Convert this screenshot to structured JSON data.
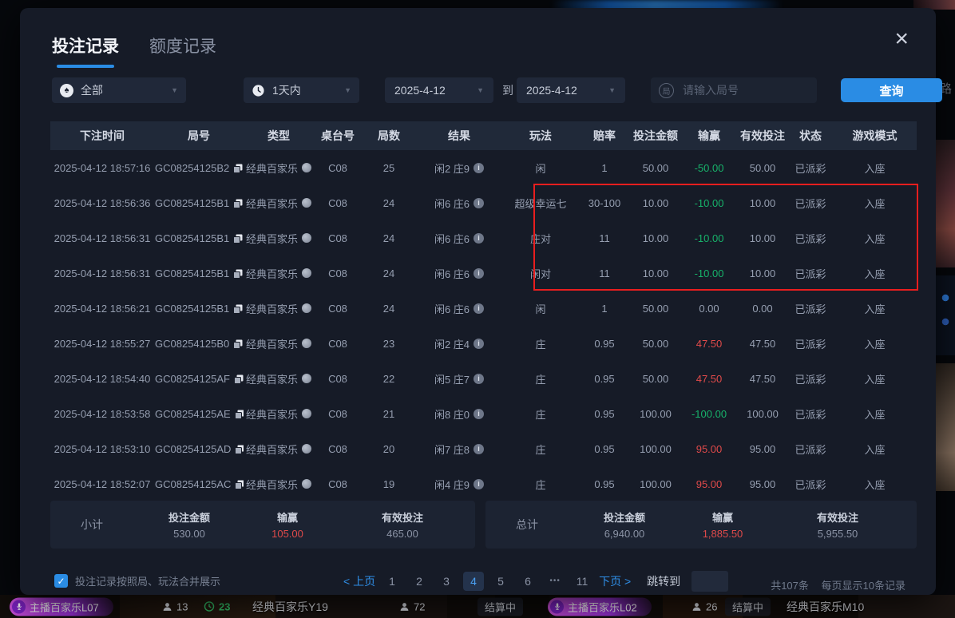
{
  "icons": {
    "spade": "♠",
    "caret": "▼",
    "check": "✓",
    "close": "×",
    "info_char": "i",
    "round_badge": "局"
  },
  "background": {
    "side_text": "路",
    "bottom_bar": [
      {
        "type": "live",
        "label": "主播百家乐L07"
      },
      {
        "type": "viewers",
        "value": "13"
      },
      {
        "type": "timer",
        "value": "23"
      },
      {
        "type": "title",
        "label": "经典百家乐Y19"
      },
      {
        "type": "viewers",
        "value": "72"
      },
      {
        "type": "status",
        "label": "结算中"
      },
      {
        "type": "live",
        "label": "主播百家乐L02"
      },
      {
        "type": "viewers",
        "value": "26"
      },
      {
        "type": "status",
        "label": "结算中"
      },
      {
        "type": "title",
        "label": "经典百家乐M10"
      }
    ]
  },
  "modal": {
    "tabs": [
      {
        "label": "投注记录",
        "active": true
      },
      {
        "label": "额度记录",
        "active": false
      }
    ],
    "filters": {
      "game_type": "全部",
      "time_range": "1天内",
      "date_from": "2025-4-12",
      "to_label": "到",
      "date_to": "2025-4-12",
      "round_placeholder": "请输入局号",
      "search_button": "查询"
    },
    "table": {
      "headers": [
        "下注时间",
        "局号",
        "类型",
        "桌台号",
        "局数",
        "结果",
        "玩法",
        "赔率",
        "投注金额",
        "输赢",
        "有效投注",
        "状态",
        "游戏模式"
      ],
      "rows": [
        {
          "time": "2025-04-12 18:57:16",
          "round_id": "GC08254125B2",
          "game_type": "经典百家乐",
          "table_no": "C08",
          "rounds": "25",
          "result": "闲2 庄9",
          "play": "闲",
          "odds": "1",
          "bet": "50.00",
          "winloss": "-50.00",
          "winloss_color": "green",
          "valid": "50.00",
          "status": "已派彩",
          "mode": "入座"
        },
        {
          "time": "2025-04-12 18:56:36",
          "round_id": "GC08254125B1",
          "game_type": "经典百家乐",
          "table_no": "C08",
          "rounds": "24",
          "result": "闲6 庄6",
          "play": "超级幸运七",
          "odds": "30-100",
          "bet": "10.00",
          "winloss": "-10.00",
          "winloss_color": "green",
          "valid": "10.00",
          "status": "已派彩",
          "mode": "入座"
        },
        {
          "time": "2025-04-12 18:56:31",
          "round_id": "GC08254125B1",
          "game_type": "经典百家乐",
          "table_no": "C08",
          "rounds": "24",
          "result": "闲6 庄6",
          "play": "庄对",
          "odds": "11",
          "bet": "10.00",
          "winloss": "-10.00",
          "winloss_color": "green",
          "valid": "10.00",
          "status": "已派彩",
          "mode": "入座"
        },
        {
          "time": "2025-04-12 18:56:31",
          "round_id": "GC08254125B1",
          "game_type": "经典百家乐",
          "table_no": "C08",
          "rounds": "24",
          "result": "闲6 庄6",
          "play": "闲对",
          "odds": "11",
          "bet": "10.00",
          "winloss": "-10.00",
          "winloss_color": "green",
          "valid": "10.00",
          "status": "已派彩",
          "mode": "入座"
        },
        {
          "time": "2025-04-12 18:56:21",
          "round_id": "GC08254125B1",
          "game_type": "经典百家乐",
          "table_no": "C08",
          "rounds": "24",
          "result": "闲6 庄6",
          "play": "闲",
          "odds": "1",
          "bet": "50.00",
          "winloss": "0.00",
          "winloss_color": "gray",
          "valid": "0.00",
          "status": "已派彩",
          "mode": "入座"
        },
        {
          "time": "2025-04-12 18:55:27",
          "round_id": "GC08254125B0",
          "game_type": "经典百家乐",
          "table_no": "C08",
          "rounds": "23",
          "result": "闲2 庄4",
          "play": "庄",
          "odds": "0.95",
          "bet": "50.00",
          "winloss": "47.50",
          "winloss_color": "red",
          "valid": "47.50",
          "status": "已派彩",
          "mode": "入座"
        },
        {
          "time": "2025-04-12 18:54:40",
          "round_id": "GC08254125AF",
          "game_type": "经典百家乐",
          "table_no": "C08",
          "rounds": "22",
          "result": "闲5 庄7",
          "play": "庄",
          "odds": "0.95",
          "bet": "50.00",
          "winloss": "47.50",
          "winloss_color": "red",
          "valid": "47.50",
          "status": "已派彩",
          "mode": "入座"
        },
        {
          "time": "2025-04-12 18:53:58",
          "round_id": "GC08254125AE",
          "game_type": "经典百家乐",
          "table_no": "C08",
          "rounds": "21",
          "result": "闲8 庄0",
          "play": "庄",
          "odds": "0.95",
          "bet": "100.00",
          "winloss": "-100.00",
          "winloss_color": "green",
          "valid": "100.00",
          "status": "已派彩",
          "mode": "入座"
        },
        {
          "time": "2025-04-12 18:53:10",
          "round_id": "GC08254125AD",
          "game_type": "经典百家乐",
          "table_no": "C08",
          "rounds": "20",
          "result": "闲7 庄8",
          "play": "庄",
          "odds": "0.95",
          "bet": "100.00",
          "winloss": "95.00",
          "winloss_color": "red",
          "valid": "95.00",
          "status": "已派彩",
          "mode": "入座"
        },
        {
          "time": "2025-04-12 18:52:07",
          "round_id": "GC08254125AC",
          "game_type": "经典百家乐",
          "table_no": "C08",
          "rounds": "19",
          "result": "闲4 庄9",
          "play": "庄",
          "odds": "0.95",
          "bet": "100.00",
          "winloss": "95.00",
          "winloss_color": "red",
          "valid": "95.00",
          "status": "已派彩",
          "mode": "入座"
        }
      ]
    },
    "subtotal": {
      "label": "小计",
      "bet_label": "投注金额",
      "bet": "530.00",
      "winloss_label": "输赢",
      "winloss": "105.00",
      "valid_label": "有效投注",
      "valid": "465.00"
    },
    "total": {
      "label": "总计",
      "bet_label": "投注金额",
      "bet": "6,940.00",
      "winloss_label": "输赢",
      "winloss": "1,885.50",
      "valid_label": "有效投注",
      "valid": "5,955.50"
    },
    "footer": {
      "merge_label": "投注记录按照局、玩法合并展示",
      "merge_checked": true,
      "pagination": {
        "prev": "< 上页",
        "pages": [
          "1",
          "2",
          "3",
          "4",
          "5",
          "6",
          "•••",
          "11"
        ],
        "active": "4",
        "next": "下页 >",
        "jump_label": "跳转到"
      },
      "total_count": "共107条",
      "per_page": "每页显示10条记录"
    }
  }
}
